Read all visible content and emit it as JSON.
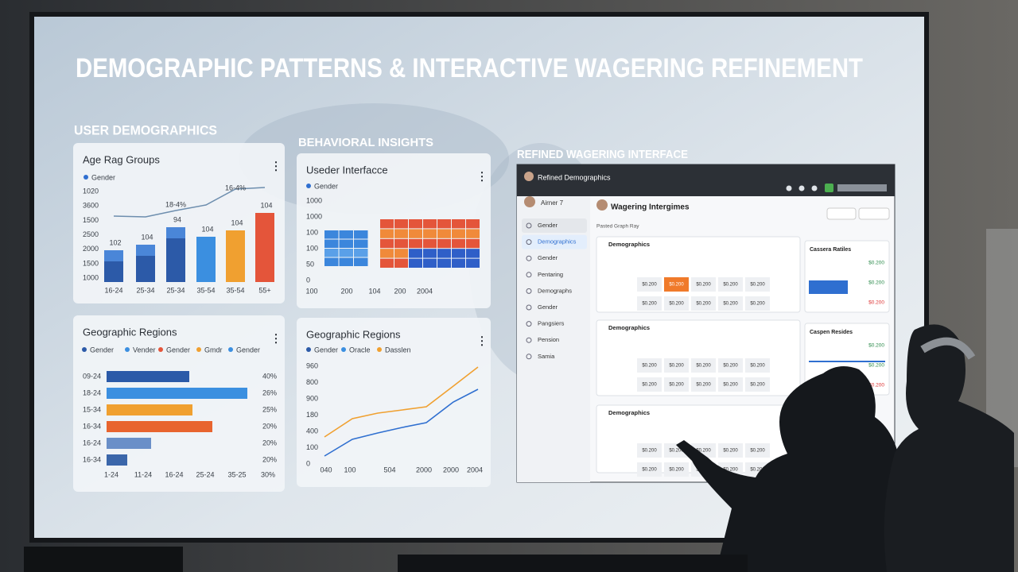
{
  "title": "DEMOGRAPHIC PATTERNS & INTERACTIVE WAGERING REFINEMENT",
  "sections": {
    "user": "USER DEMOGRAPHICS",
    "behavior": "BEHAVIORAL INSIGHTS",
    "wager": "REFINED WAGERING INTERFACE"
  },
  "age_card": {
    "title": "Age Rag Groups",
    "legend": [
      "Gender"
    ],
    "y_labels": [
      "1020",
      "3600",
      "1500",
      "2500",
      "2000",
      "1500",
      "1000"
    ],
    "x_labels": [
      "16-24",
      "25-34",
      "25-34",
      "35-54",
      "35-54",
      "55+"
    ],
    "bar_labels": [
      "102",
      "104",
      "94",
      "104",
      "104",
      "104"
    ],
    "line_labels": [
      "18-4%",
      "16-4%"
    ]
  },
  "interface_card": {
    "title": "Useder Interfacce",
    "legend": [
      "Gender"
    ],
    "y_labels": [
      "1000",
      "1000",
      "100",
      "100",
      "50",
      "0"
    ],
    "x_labels": [
      "100",
      "200",
      "104",
      "200",
      "2004"
    ]
  },
  "regions_card": {
    "title": "Geographic Regions",
    "legend": [
      "Gender",
      "Vender",
      "Gender",
      "Gmdr",
      "Gender"
    ],
    "row_labels": [
      "09-24",
      "18-24",
      "15-34",
      "16-34",
      "16-24",
      "16-34"
    ],
    "pct_labels": [
      "40%",
      "26%",
      "25%",
      "20%",
      "20%",
      "20%"
    ],
    "x_labels": [
      "1-24",
      "11-24",
      "16-24",
      "25-24",
      "35-25",
      "30%"
    ]
  },
  "geo_card": {
    "title": "Geographic Regions",
    "legend": [
      "Gender",
      "Oracle",
      "Dasslen"
    ],
    "y_labels": [
      "960",
      "800",
      "900",
      "180",
      "400",
      "100",
      "0"
    ],
    "x_labels": [
      "040",
      "100",
      "504",
      "2000",
      "2000",
      "2004"
    ]
  },
  "dashboard": {
    "header": "Refined Demographics",
    "user": "Airner 7",
    "menu": [
      "Gender",
      "Demographics",
      "Gender",
      "Pentaring",
      "Demographs",
      "Gender",
      "Pangsiers",
      "Pension",
      "Samia"
    ],
    "title": "Wagering Intergimes",
    "subtitle": "Pasted Graph Ray",
    "panels": [
      {
        "title": "Demographics",
        "rows": [
          [
            "$0.200",
            "$0.200",
            "$0.200",
            "$0.200",
            "$0.200"
          ],
          [
            "$0.200",
            "$0.200",
            "$0.200",
            "$0.200",
            "$0.200"
          ]
        ]
      },
      {
        "title": "Demographics",
        "rows": [
          [
            "$0.200",
            "$0.200",
            "$0.200",
            "$0.200",
            "$0.200"
          ],
          [
            "$0.200",
            "$0.200",
            "$0.200",
            "$0.200",
            "$0.200"
          ]
        ]
      },
      {
        "title": "Demographics",
        "rows": [
          [
            "$0.200",
            "$0.200",
            "$0.200",
            "$0.200",
            "$0.200"
          ],
          [
            "$0.200",
            "$0.200",
            "$0.200",
            "$0.200",
            "$0.200"
          ]
        ]
      }
    ],
    "side": [
      {
        "title": "Cassera Ratiles",
        "lines": [
          "$0.200",
          "$0.200",
          "$0.200"
        ]
      },
      {
        "title": "Caspen Resides",
        "lines": [
          "$0.200",
          "$0.200",
          "$0.200"
        ]
      }
    ]
  }
}
